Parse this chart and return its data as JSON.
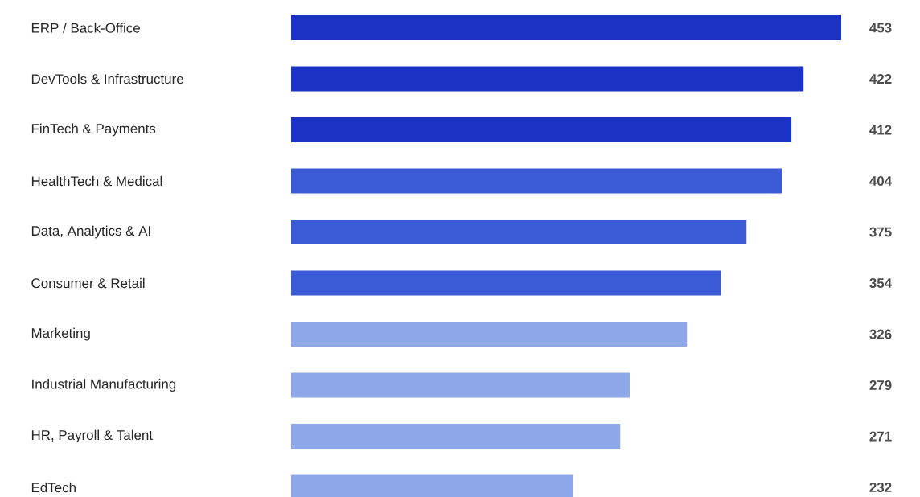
{
  "chart_data": {
    "type": "bar",
    "orientation": "horizontal",
    "data_labels": true,
    "categories": [
      "ERP / Back-Office",
      "DevTools & Infrastructure",
      "FinTech & Payments",
      "HealthTech & Medical",
      "Data, Analytics & AI",
      "Consumer & Retail",
      "Marketing",
      "Industrial Manufacturing",
      "HR, Payroll & Talent",
      "EdTech"
    ],
    "values": [
      453,
      422,
      412,
      404,
      375,
      354,
      326,
      279,
      271,
      232
    ],
    "value_labels": [
      "453",
      "422",
      "412",
      "404",
      "375",
      "354",
      "326",
      "279",
      "271",
      "232"
    ],
    "colors": [
      "#1b33c4",
      "#1b33c4",
      "#1b33c4",
      "#3b5bd6",
      "#3b5bd6",
      "#3b5bd6",
      "#8ea7e9",
      "#8ea7e9",
      "#8ea7e9",
      "#8ea7e9"
    ]
  }
}
